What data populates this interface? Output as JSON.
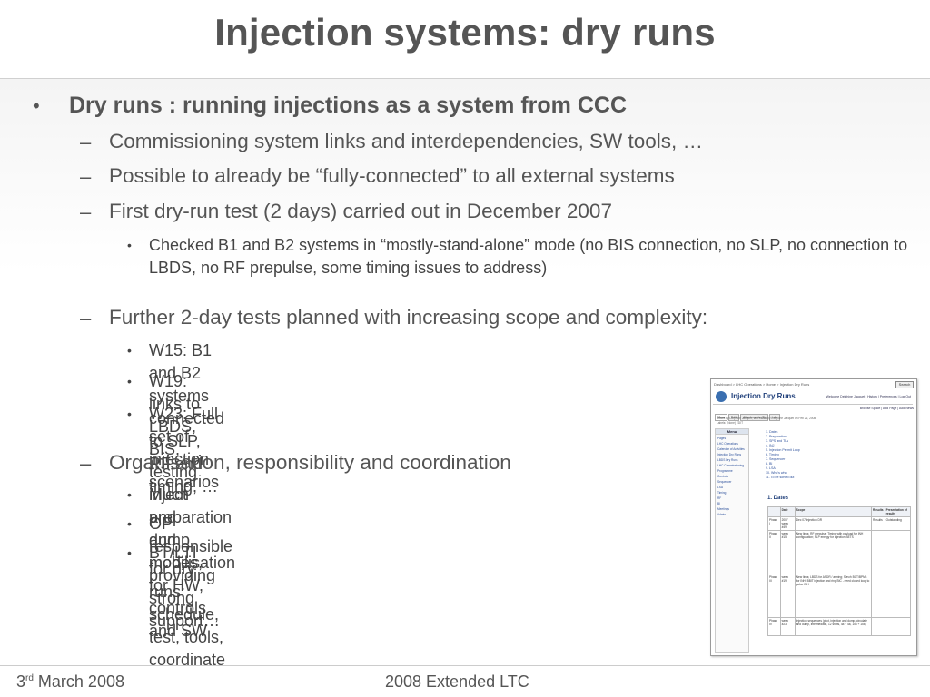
{
  "title": "Injection systems: dry runs",
  "main_bullet": "Dry runs : running injections as a system from CCC",
  "items": [
    {
      "text": "Commissioning system links and interdependencies, SW tools, …"
    },
    {
      "text": "Possible to already be “fully-connected” to all external systems"
    },
    {
      "text": "First dry-run test (2 days) carried out in December 2007"
    },
    {
      "text": "Checked B1 and B2 systems in “mostly-stand-alone” mode (no BIS connection, no SLP, no connection to LBDS, no RF prepulse, some timing issues to address)"
    },
    {
      "text": "Further 2-day tests planned with increasing scope and complexity:"
    },
    {
      "text": "W15: B1 and B2 systems connected to SLP, RF and timing, …"
    },
    {
      "text": "W19: links to LBDS, BIS, testing inject and dump modes, …"
    },
    {
      "text": "W23: Full set of injection scenarios"
    },
    {
      "text": "Organisation, responsibility and coordination"
    },
    {
      "text": "Much preparation and mobilisation for HW, controls and SW"
    },
    {
      "text": "OP responsible for dry runs: schedule, test, tools, coordinate"
    },
    {
      "text": "BT/LTI providing strong support…"
    }
  ],
  "thumbnail": {
    "breadcrumb": "Dashboard > LHC Operations > Home > Injection Dry Runs",
    "search_button": "Search",
    "page_title": "Injection Dry Runs",
    "user_links": "Welcome Delphine Jacquet | History | Preferences | Log Out",
    "tabs": [
      "View",
      "Edit",
      "Attachments (0)",
      "Info"
    ],
    "actions": "Browse Space | Add Page | Add News",
    "meta_lines": [
      "Added by Delphine Jacquet, last edited by Delphine Jacquet on Feb 26, 2008",
      "Labels: (None) EDIT"
    ],
    "side_menu_title": "Menu",
    "side_links": [
      "Pages",
      "LHC Operations",
      "Calendar of Activities",
      "Injection Dry Runs",
      "LBDS Dry Runs",
      "LHC Commissioning",
      "Programme",
      "Controls",
      "Sequencer",
      "LSA",
      "Timing",
      "RF",
      "BI",
      "Meetings",
      "Admin"
    ],
    "toc": [
      "1. Dates",
      "2. Preparation",
      "3. SPS and TLs",
      "4. INJ",
      "5. Injection Permit Loop",
      "6. Timing",
      "7. Sequencer",
      "8. BI",
      "9. LSA",
      "10. Who's who",
      "11. To be sorted out"
    ],
    "section_heading": "1. Dates",
    "table_headers": [
      "",
      "Date",
      "Scope",
      "Results",
      "Presentation of results"
    ],
    "table_rows": [
      [
        "Phase I",
        "2007 week #49",
        "Dec 07 Injection DR",
        "Results",
        "Outstanding"
      ],
      [
        "Phase II",
        "week #15",
        "New links; RF prepulse; Timing with payload for INH configuration; SLP energy for injection BETS",
        "",
        ""
      ],
      [
        "Phase III",
        "week #19",
        "New links; LBDS for ASDR / arming; Synch BCT/BPMs for INH; BBIT injection and ring BIC - need closed loop to pulse INH",
        "",
        ""
      ],
      [
        "Phase IV",
        "week #23",
        "Injection sequences (pilot, injection and dump, circulate and dump, intermediate, 12 shots, 48 + 48, 156 + 156)",
        "",
        ""
      ]
    ]
  },
  "footer": {
    "date_day": "3",
    "date_suffix": "rd",
    "date_rest": " March 2008",
    "center": "2008 Extended LTC"
  }
}
